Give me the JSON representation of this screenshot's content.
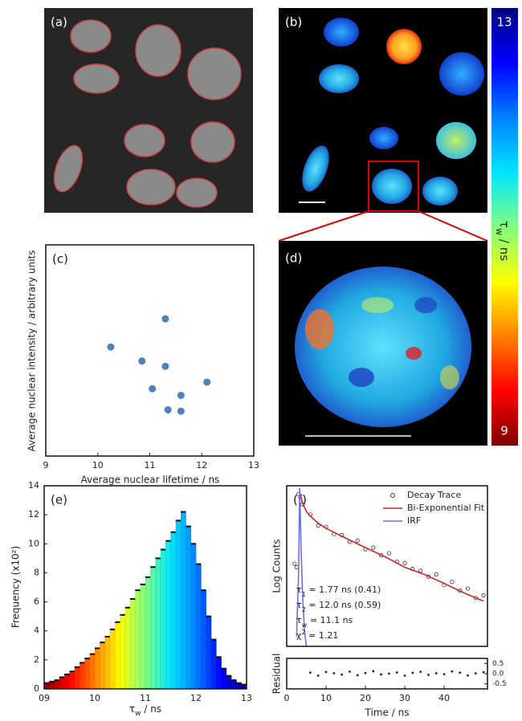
{
  "figure": {
    "images": [
      {
        "label": "(a)"
      },
      {
        "label": "(b)"
      },
      {
        "label": "(d)"
      }
    ],
    "colorbar": {
      "max": 13,
      "min": 9,
      "label": {
        "main": "τ",
        "sub": "w",
        "rest": " / ns"
      },
      "colors": [
        "#7f0000",
        "#ff0000",
        "#ff8000",
        "#ffff00",
        "#80ff80",
        "#00e5ff",
        "#0080ff",
        "#0000ff",
        "#00007f"
      ]
    }
  },
  "chart_data": [
    {
      "type": "scatter",
      "panel_label": "(c)",
      "x_label": "Average nuclear lifetime / ns",
      "y_label": "Average nuclear intensity / arbitrary units",
      "x": [
        10.25,
        11.3,
        10.85,
        11.3,
        11.05,
        11.6,
        12.1,
        11.35,
        11.6
      ],
      "values": [
        4.13,
        5.2,
        3.6,
        3.4,
        2.55,
        2.3,
        2.8,
        1.75,
        1.7
      ],
      "color": "#4f81bd",
      "xlim": [
        9,
        13
      ],
      "xticks": [
        9,
        10,
        11,
        12,
        13
      ],
      "ylim": [
        0,
        8
      ]
    },
    {
      "type": "histogram",
      "panel_label": "(e)",
      "x_label": {
        "main": "τ",
        "sub": "w",
        "rest": " / ns"
      },
      "y_label": "Frequency (x10²)",
      "bins": [
        9.0,
        9.1,
        9.2,
        9.3,
        9.4,
        9.5,
        9.6,
        9.7,
        9.8,
        9.9,
        10.0,
        10.1,
        10.2,
        10.3,
        10.4,
        10.5,
        10.6,
        10.7,
        10.8,
        10.9,
        11.0,
        11.1,
        11.2,
        11.3,
        11.4,
        11.5,
        11.6,
        11.7,
        11.8,
        11.9,
        12.0,
        12.1,
        12.2,
        12.3,
        12.4,
        12.5,
        12.6,
        12.7,
        12.8,
        12.9,
        13.0
      ],
      "counts": [
        0.4,
        0.5,
        0.6,
        0.8,
        1.0,
        1.2,
        1.5,
        1.8,
        2.1,
        2.4,
        2.8,
        3.2,
        3.6,
        4.1,
        4.6,
        5.1,
        5.6,
        6.2,
        6.8,
        7.2,
        7.7,
        8.4,
        9.0,
        9.6,
        10.2,
        10.8,
        11.6,
        12.2,
        11.2,
        10.0,
        8.6,
        6.8,
        5.0,
        3.4,
        2.2,
        1.4,
        0.9,
        0.6,
        0.4,
        0.3
      ],
      "xlim": [
        9,
        13
      ],
      "xticks": [
        {
          "value": 9,
          "label": "09"
        },
        10,
        11,
        12,
        13
      ],
      "ylim": [
        0,
        14
      ],
      "yticks": [
        0,
        2,
        4,
        6,
        8,
        10,
        12,
        14
      ]
    },
    {
      "type": "line",
      "panel_label": "(f)",
      "y_label": "Log Counts",
      "ylog": true,
      "xlim": [
        0,
        51
      ],
      "ylim": [
        1,
        1000
      ],
      "legend": "upper right",
      "series": [
        {
          "name": "Decay Trace",
          "color": "#333333",
          "mode": "markers",
          "x": [
            2,
            2.5,
            3,
            4,
            6,
            8,
            10,
            12,
            14,
            16,
            18,
            20,
            22,
            24,
            26,
            28,
            30,
            32,
            34,
            36,
            38,
            40,
            42,
            44,
            46,
            48,
            50
          ],
          "values": [
            35,
            30,
            700,
            450,
            290,
            180,
            170,
            125,
            120,
            90,
            95,
            65,
            70,
            50,
            55,
            38,
            36,
            28,
            26,
            20,
            22,
            14,
            16,
            11,
            12,
            8,
            9
          ]
        },
        {
          "name": "Bi-Exponential Fit",
          "color": "#d62728",
          "mode": "line",
          "x": [
            3.3,
            4,
            5,
            6,
            8,
            10,
            15,
            20,
            25,
            30,
            35,
            40,
            45,
            50
          ],
          "values": [
            750,
            480,
            330,
            270,
            200,
            160,
            105,
            70,
            47,
            30,
            22,
            15,
            10,
            7
          ]
        },
        {
          "name": "IRF",
          "color": "#6f6fe8",
          "mode": "line",
          "x": [
            2.5,
            3,
            3.3,
            3.6,
            4,
            4.5,
            5
          ],
          "values": [
            1.5,
            20,
            900,
            100,
            10,
            2,
            1
          ]
        }
      ],
      "annotations": [
        {
          "main": "τ",
          "sub": "1",
          "rest": " = 1.77 ns (0.41)"
        },
        {
          "main": "τ",
          "sub": "2",
          "rest": " = 12.0 ns (0.59)"
        },
        {
          "main": "τ",
          "sub": "w",
          "rest": " = 11.1 ns"
        },
        {
          "main": "χ",
          "sup": "2",
          "rest": " = 1.21"
        }
      ]
    },
    {
      "type": "scatter",
      "y_label": "Residual",
      "x_label": "Time / ns",
      "color": "#222222",
      "x": [
        6,
        8,
        10,
        12,
        14,
        16,
        18,
        20,
        22,
        24,
        26,
        28,
        30,
        32,
        34,
        36,
        38,
        40,
        42,
        44,
        46,
        48,
        50
      ],
      "values": [
        0.05,
        -0.1,
        0.08,
        0.02,
        -0.05,
        0.1,
        -0.08,
        0.03,
        0.12,
        -0.04,
        0.0,
        0.06,
        -0.1,
        0.04,
        0.09,
        -0.06,
        0.02,
        -0.03,
        0.11,
        0.05,
        -0.09,
        0.01,
        0.07
      ],
      "xlim": [
        0,
        51
      ],
      "xticks": [
        0,
        10,
        20,
        30,
        40
      ],
      "ylim": [
        -0.75,
        0.75
      ],
      "yticks": [
        0.5,
        {
          "value": 0,
          "label": "0.0"
        },
        -0.5
      ],
      "ytick_side": "right"
    }
  ]
}
